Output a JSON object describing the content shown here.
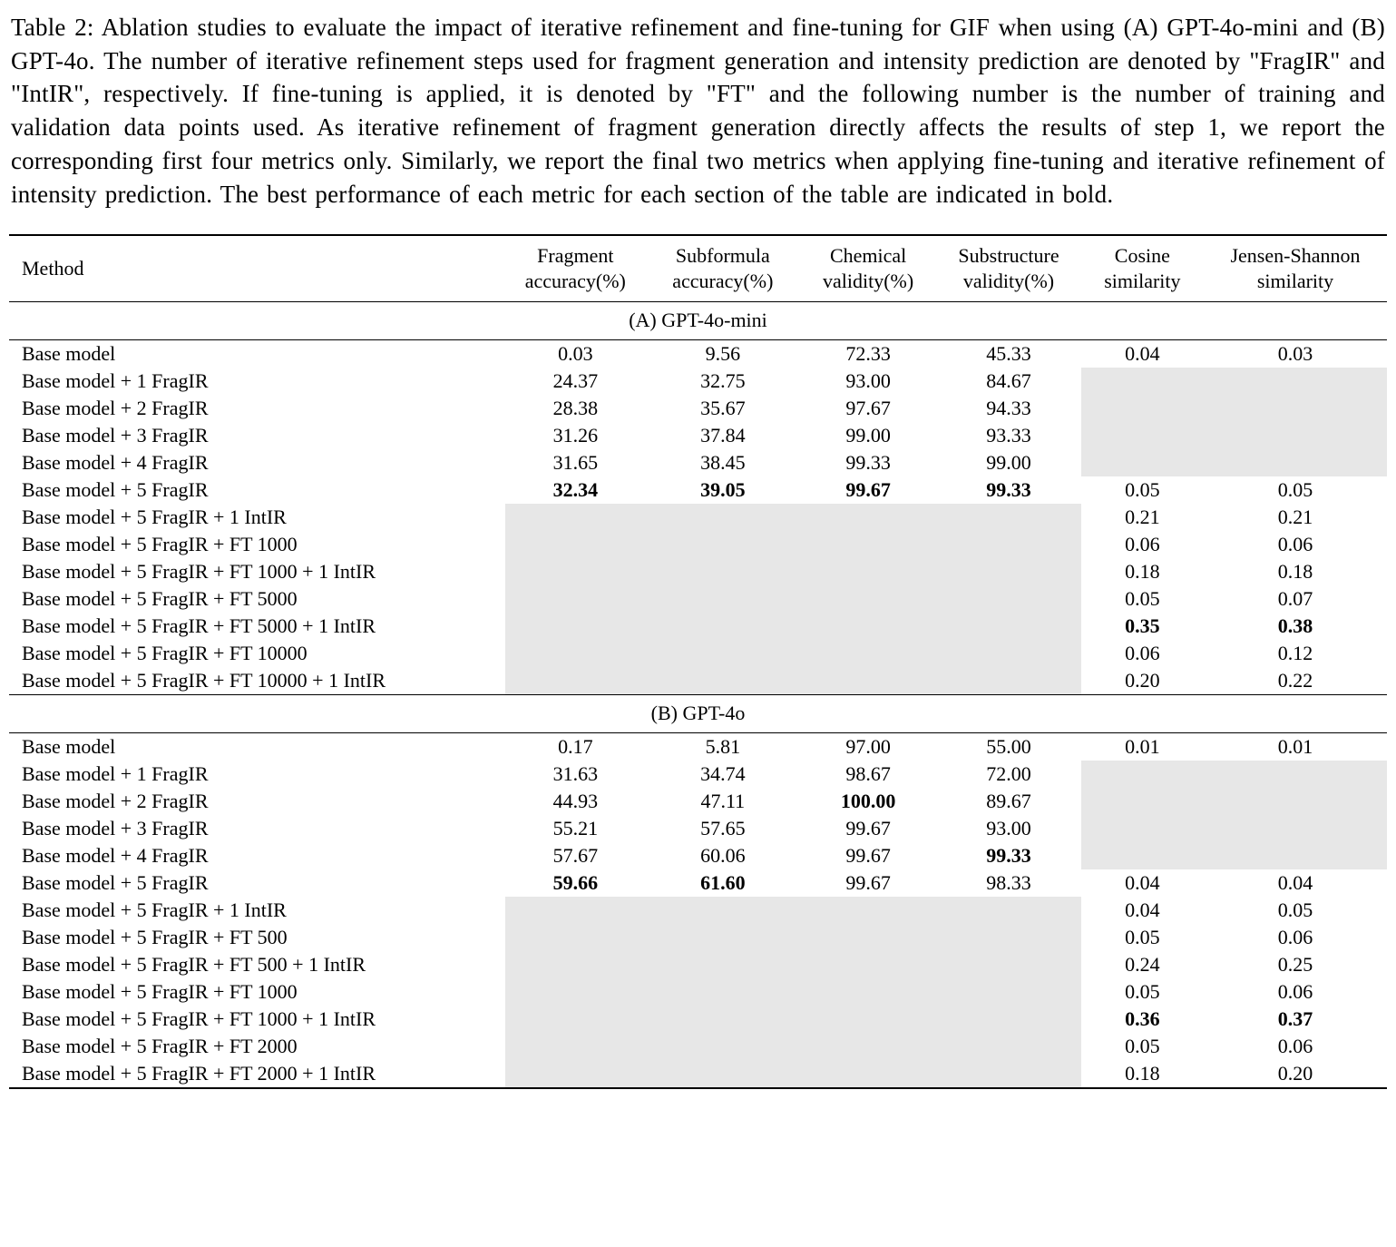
{
  "caption": "Table 2: Ablation studies to evaluate the impact of iterative refinement and fine-tuning for GIF when using (A) GPT-4o-mini and (B) GPT-4o. The number of iterative refinement steps used for fragment generation and intensity prediction are denoted by \"FragIR\" and \"IntIR\", respectively. If fine-tuning is applied, it is denoted by \"FT\" and the following number is the number of training and validation data points used. As iterative refinement of fragment generation directly affects the results of step 1, we report the corresponding first four metrics only. Similarly, we report the final two metrics when applying fine-tuning and iterative refinement of intensity prediction. The best performance of each metric for each section of the table are indicated in bold.",
  "table": {
    "gray_color": "#e7e7e7",
    "columns": [
      {
        "lines": [
          "Method"
        ]
      },
      {
        "lines": [
          "Fragment",
          "accuracy(%)"
        ]
      },
      {
        "lines": [
          "Subformula",
          "accuracy(%)"
        ]
      },
      {
        "lines": [
          "Chemical",
          "validity(%)"
        ]
      },
      {
        "lines": [
          "Substructure",
          "validity(%)"
        ]
      },
      {
        "lines": [
          "Cosine",
          "similarity"
        ]
      },
      {
        "lines": [
          "Jensen-Shannon",
          "similarity"
        ]
      }
    ],
    "sections": [
      {
        "title": "(A) GPT-4o-mini",
        "rows": [
          {
            "method": "Base model",
            "cells": [
              {
                "v": "0.03"
              },
              {
                "v": "9.56"
              },
              {
                "v": "72.33"
              },
              {
                "v": "45.33"
              },
              {
                "v": "0.04"
              },
              {
                "v": "0.03"
              }
            ]
          },
          {
            "method": "Base model + 1 FragIR",
            "cells": [
              {
                "v": "24.37"
              },
              {
                "v": "32.75"
              },
              {
                "v": "93.00"
              },
              {
                "v": "84.67"
              },
              {
                "gray": true
              },
              {
                "gray": true
              }
            ]
          },
          {
            "method": "Base model + 2 FragIR",
            "cells": [
              {
                "v": "28.38"
              },
              {
                "v": "35.67"
              },
              {
                "v": "97.67"
              },
              {
                "v": "94.33"
              },
              {
                "gray": true
              },
              {
                "gray": true
              }
            ]
          },
          {
            "method": "Base model + 3 FragIR",
            "cells": [
              {
                "v": "31.26"
              },
              {
                "v": "37.84"
              },
              {
                "v": "99.00"
              },
              {
                "v": "93.33"
              },
              {
                "gray": true
              },
              {
                "gray": true
              }
            ]
          },
          {
            "method": "Base model + 4 FragIR",
            "cells": [
              {
                "v": "31.65"
              },
              {
                "v": "38.45"
              },
              {
                "v": "99.33"
              },
              {
                "v": "99.00"
              },
              {
                "gray": true
              },
              {
                "gray": true
              }
            ]
          },
          {
            "method": "Base model + 5 FragIR",
            "cells": [
              {
                "v": "32.34",
                "bold": true
              },
              {
                "v": "39.05",
                "bold": true
              },
              {
                "v": "99.67",
                "bold": true
              },
              {
                "v": "99.33",
                "bold": true
              },
              {
                "v": "0.05"
              },
              {
                "v": "0.05"
              }
            ]
          },
          {
            "method": "Base model + 5 FragIR + 1 IntIR",
            "cells": [
              {
                "gray": true
              },
              {
                "gray": true
              },
              {
                "gray": true
              },
              {
                "gray": true
              },
              {
                "v": "0.21"
              },
              {
                "v": "0.21"
              }
            ]
          },
          {
            "method": "Base model + 5 FragIR + FT 1000",
            "cells": [
              {
                "gray": true
              },
              {
                "gray": true
              },
              {
                "gray": true
              },
              {
                "gray": true
              },
              {
                "v": "0.06"
              },
              {
                "v": "0.06"
              }
            ]
          },
          {
            "method": "Base model + 5 FragIR + FT 1000 + 1 IntIR",
            "cells": [
              {
                "gray": true
              },
              {
                "gray": true
              },
              {
                "gray": true
              },
              {
                "gray": true
              },
              {
                "v": "0.18"
              },
              {
                "v": "0.18"
              }
            ]
          },
          {
            "method": "Base model + 5 FragIR + FT 5000",
            "cells": [
              {
                "gray": true
              },
              {
                "gray": true
              },
              {
                "gray": true
              },
              {
                "gray": true
              },
              {
                "v": "0.05"
              },
              {
                "v": "0.07"
              }
            ]
          },
          {
            "method": "Base model + 5 FragIR + FT 5000 + 1 IntIR",
            "cells": [
              {
                "gray": true
              },
              {
                "gray": true
              },
              {
                "gray": true
              },
              {
                "gray": true
              },
              {
                "v": "0.35",
                "bold": true
              },
              {
                "v": "0.38",
                "bold": true
              }
            ]
          },
          {
            "method": "Base model + 5 FragIR + FT 10000",
            "cells": [
              {
                "gray": true
              },
              {
                "gray": true
              },
              {
                "gray": true
              },
              {
                "gray": true
              },
              {
                "v": "0.06"
              },
              {
                "v": "0.12"
              }
            ]
          },
          {
            "method": "Base model + 5 FragIR + FT 10000 + 1 IntIR",
            "cells": [
              {
                "gray": true
              },
              {
                "gray": true
              },
              {
                "gray": true
              },
              {
                "gray": true
              },
              {
                "v": "0.20"
              },
              {
                "v": "0.22"
              }
            ]
          }
        ]
      },
      {
        "title": "(B) GPT-4o",
        "rows": [
          {
            "method": "Base model",
            "cells": [
              {
                "v": "0.17"
              },
              {
                "v": "5.81"
              },
              {
                "v": "97.00"
              },
              {
                "v": "55.00"
              },
              {
                "v": "0.01"
              },
              {
                "v": "0.01"
              }
            ]
          },
          {
            "method": "Base model + 1 FragIR",
            "cells": [
              {
                "v": "31.63"
              },
              {
                "v": "34.74"
              },
              {
                "v": "98.67"
              },
              {
                "v": "72.00"
              },
              {
                "gray": true
              },
              {
                "gray": true
              }
            ]
          },
          {
            "method": "Base model + 2 FragIR",
            "cells": [
              {
                "v": "44.93"
              },
              {
                "v": "47.11"
              },
              {
                "v": "100.00",
                "bold": true
              },
              {
                "v": "89.67"
              },
              {
                "gray": true
              },
              {
                "gray": true
              }
            ]
          },
          {
            "method": "Base model + 3 FragIR",
            "cells": [
              {
                "v": "55.21"
              },
              {
                "v": "57.65"
              },
              {
                "v": "99.67"
              },
              {
                "v": "93.00"
              },
              {
                "gray": true
              },
              {
                "gray": true
              }
            ]
          },
          {
            "method": "Base model + 4 FragIR",
            "cells": [
              {
                "v": "57.67"
              },
              {
                "v": "60.06"
              },
              {
                "v": "99.67"
              },
              {
                "v": "99.33",
                "bold": true
              },
              {
                "gray": true
              },
              {
                "gray": true
              }
            ]
          },
          {
            "method": "Base model + 5 FragIR",
            "cells": [
              {
                "v": "59.66",
                "bold": true
              },
              {
                "v": "61.60",
                "bold": true
              },
              {
                "v": "99.67"
              },
              {
                "v": "98.33"
              },
              {
                "v": "0.04"
              },
              {
                "v": "0.04"
              }
            ]
          },
          {
            "method": "Base model + 5 FragIR + 1 IntIR",
            "cells": [
              {
                "gray": true
              },
              {
                "gray": true
              },
              {
                "gray": true
              },
              {
                "gray": true
              },
              {
                "v": "0.04"
              },
              {
                "v": "0.05"
              }
            ]
          },
          {
            "method": "Base model + 5 FragIR + FT 500",
            "cells": [
              {
                "gray": true
              },
              {
                "gray": true
              },
              {
                "gray": true
              },
              {
                "gray": true
              },
              {
                "v": "0.05"
              },
              {
                "v": "0.06"
              }
            ]
          },
          {
            "method": "Base model + 5 FragIR + FT 500 + 1 IntIR",
            "cells": [
              {
                "gray": true
              },
              {
                "gray": true
              },
              {
                "gray": true
              },
              {
                "gray": true
              },
              {
                "v": "0.24"
              },
              {
                "v": "0.25"
              }
            ]
          },
          {
            "method": "Base model + 5 FragIR + FT 1000",
            "cells": [
              {
                "gray": true
              },
              {
                "gray": true
              },
              {
                "gray": true
              },
              {
                "gray": true
              },
              {
                "v": "0.05"
              },
              {
                "v": "0.06"
              }
            ]
          },
          {
            "method": "Base model + 5 FragIR + FT 1000 + 1 IntIR",
            "cells": [
              {
                "gray": true
              },
              {
                "gray": true
              },
              {
                "gray": true
              },
              {
                "gray": true
              },
              {
                "v": "0.36",
                "bold": true
              },
              {
                "v": "0.37",
                "bold": true
              }
            ]
          },
          {
            "method": "Base model + 5 FragIR + FT 2000",
            "cells": [
              {
                "gray": true
              },
              {
                "gray": true
              },
              {
                "gray": true
              },
              {
                "gray": true
              },
              {
                "v": "0.05"
              },
              {
                "v": "0.06"
              }
            ]
          },
          {
            "method": "Base model + 5 FragIR + FT 2000 + 1 IntIR",
            "cells": [
              {
                "gray": true
              },
              {
                "gray": true
              },
              {
                "gray": true
              },
              {
                "gray": true
              },
              {
                "v": "0.18"
              },
              {
                "v": "0.20"
              }
            ]
          }
        ]
      }
    ]
  }
}
